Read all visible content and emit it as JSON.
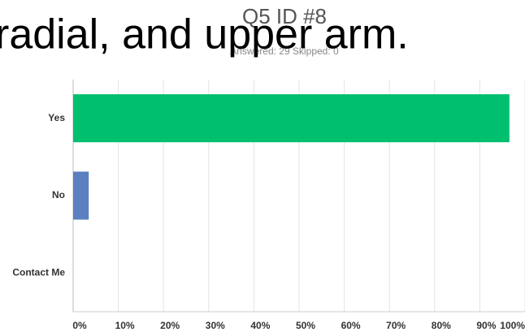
{
  "chart_data": {
    "type": "barh",
    "title": "Q5 ID #8",
    "subtitle": "Answered: 29 Skipped: 0",
    "annotation": "radial, and upper arm.",
    "categories": [
      "Yes",
      "No",
      "Contact Me"
    ],
    "values": [
      96.55,
      3.45,
      0
    ],
    "colors": [
      "#00bf6f",
      "#5b80bf",
      "#5b80bf"
    ],
    "xlim": [
      0,
      100
    ],
    "xticks": [
      {
        "value": 0,
        "label": "0%"
      },
      {
        "value": 10,
        "label": "10%"
      },
      {
        "value": 20,
        "label": "20%"
      },
      {
        "value": 30,
        "label": "30%"
      },
      {
        "value": 40,
        "label": "40%"
      },
      {
        "value": 50,
        "label": "50%"
      },
      {
        "value": 60,
        "label": "60%"
      },
      {
        "value": 70,
        "label": "70%"
      },
      {
        "value": 80,
        "label": "80%"
      },
      {
        "value": 90,
        "label": "90%"
      },
      {
        "value": 100,
        "label": "100%"
      }
    ],
    "grid": true
  }
}
